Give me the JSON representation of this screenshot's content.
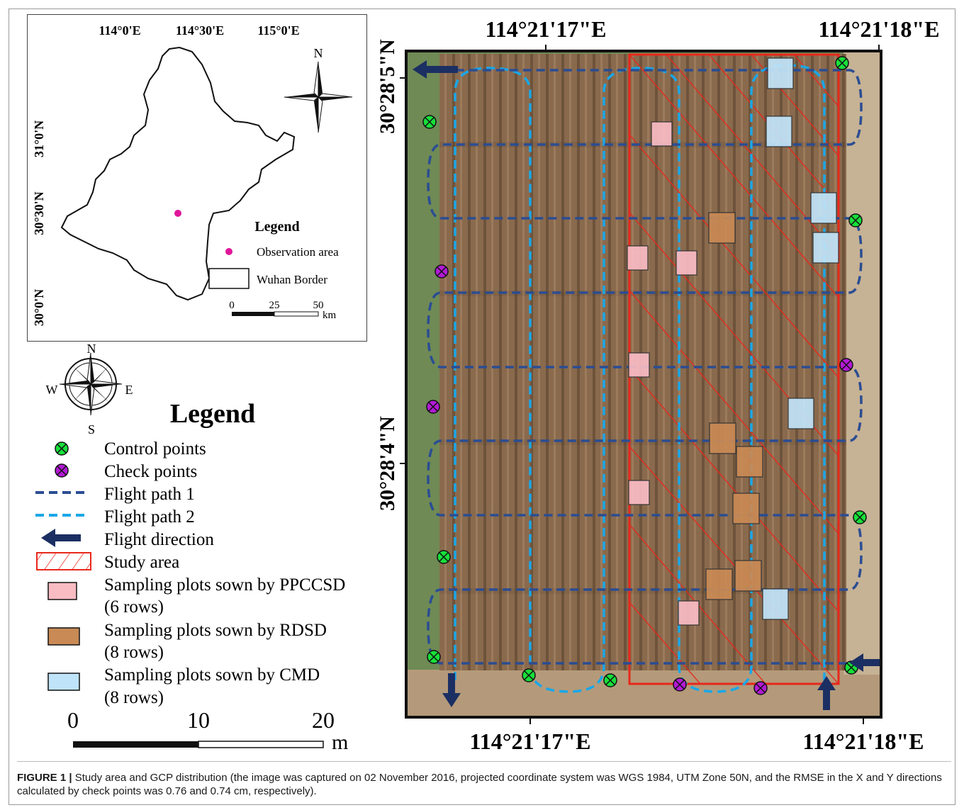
{
  "inset_map": {
    "lon_ticks": [
      "114°0'E",
      "114°30'E",
      "115°0'E"
    ],
    "lat_ticks": [
      "31°0'N",
      "30°30'N",
      "30°0'N"
    ],
    "north_label": "N",
    "legend_title": "Legend",
    "legend_items": [
      "Observation area",
      "Wuhan Border"
    ],
    "scale_ticks": [
      "0",
      "25",
      "50"
    ],
    "scale_unit": "km",
    "observation_color": "#e0169a"
  },
  "compass": {
    "n": "N",
    "s": "S",
    "e": "E",
    "w": "W"
  },
  "legend": {
    "title": "Legend",
    "items": [
      {
        "symbol": "control-point",
        "label": "Control points"
      },
      {
        "symbol": "check-point",
        "label": "Check points"
      },
      {
        "symbol": "flight-path-1",
        "label": "Flight path 1"
      },
      {
        "symbol": "flight-path-2",
        "label": "Flight path 2"
      },
      {
        "symbol": "flight-direction",
        "label": "Flight direction"
      },
      {
        "symbol": "study-area",
        "label": "Study area"
      },
      {
        "symbol": "ppccsd-plot",
        "label": "Sampling plots sown by PPCCSD",
        "label2": "(6 rows)"
      },
      {
        "symbol": "rdsd-plot",
        "label": "Sampling plots sown by RDSD",
        "label2": "(8 rows)"
      },
      {
        "symbol": "cmd-plot",
        "label": "Sampling plots sown by CMD",
        "label2": "(8 rows)"
      }
    ],
    "colors": {
      "control": "#18e03a",
      "check": "#b31ad6",
      "flight_path_1": "#2b4d93",
      "flight_path_2": "#1aa7e8",
      "flight_direction": "#1c2f63",
      "study_area": "#e8281c",
      "ppccsd": "#f9bcc3",
      "rdsd": "#c98a55",
      "cmd": "#bfe3f8"
    }
  },
  "main_scale": {
    "ticks": [
      "0",
      "10",
      "20"
    ],
    "unit": "m"
  },
  "main_map": {
    "top_labels": [
      "114°21'17\"E",
      "114°21'18\"E"
    ],
    "bottom_labels": [
      "114°21'17\"E",
      "114°21'18\"E"
    ],
    "left_labels": [
      "30°28'5\"N",
      "30°28'4\"N"
    ]
  },
  "caption": {
    "label": "FIGURE 1 |",
    "text": "Study area and GCP distribution (the image was captured on 02 November 2016, projected coordinate system was WGS 1984, UTM Zone 50N, and the RMSE in the X and Y directions calculated by check points was 0.76 and 0.74 cm, respectively)."
  }
}
